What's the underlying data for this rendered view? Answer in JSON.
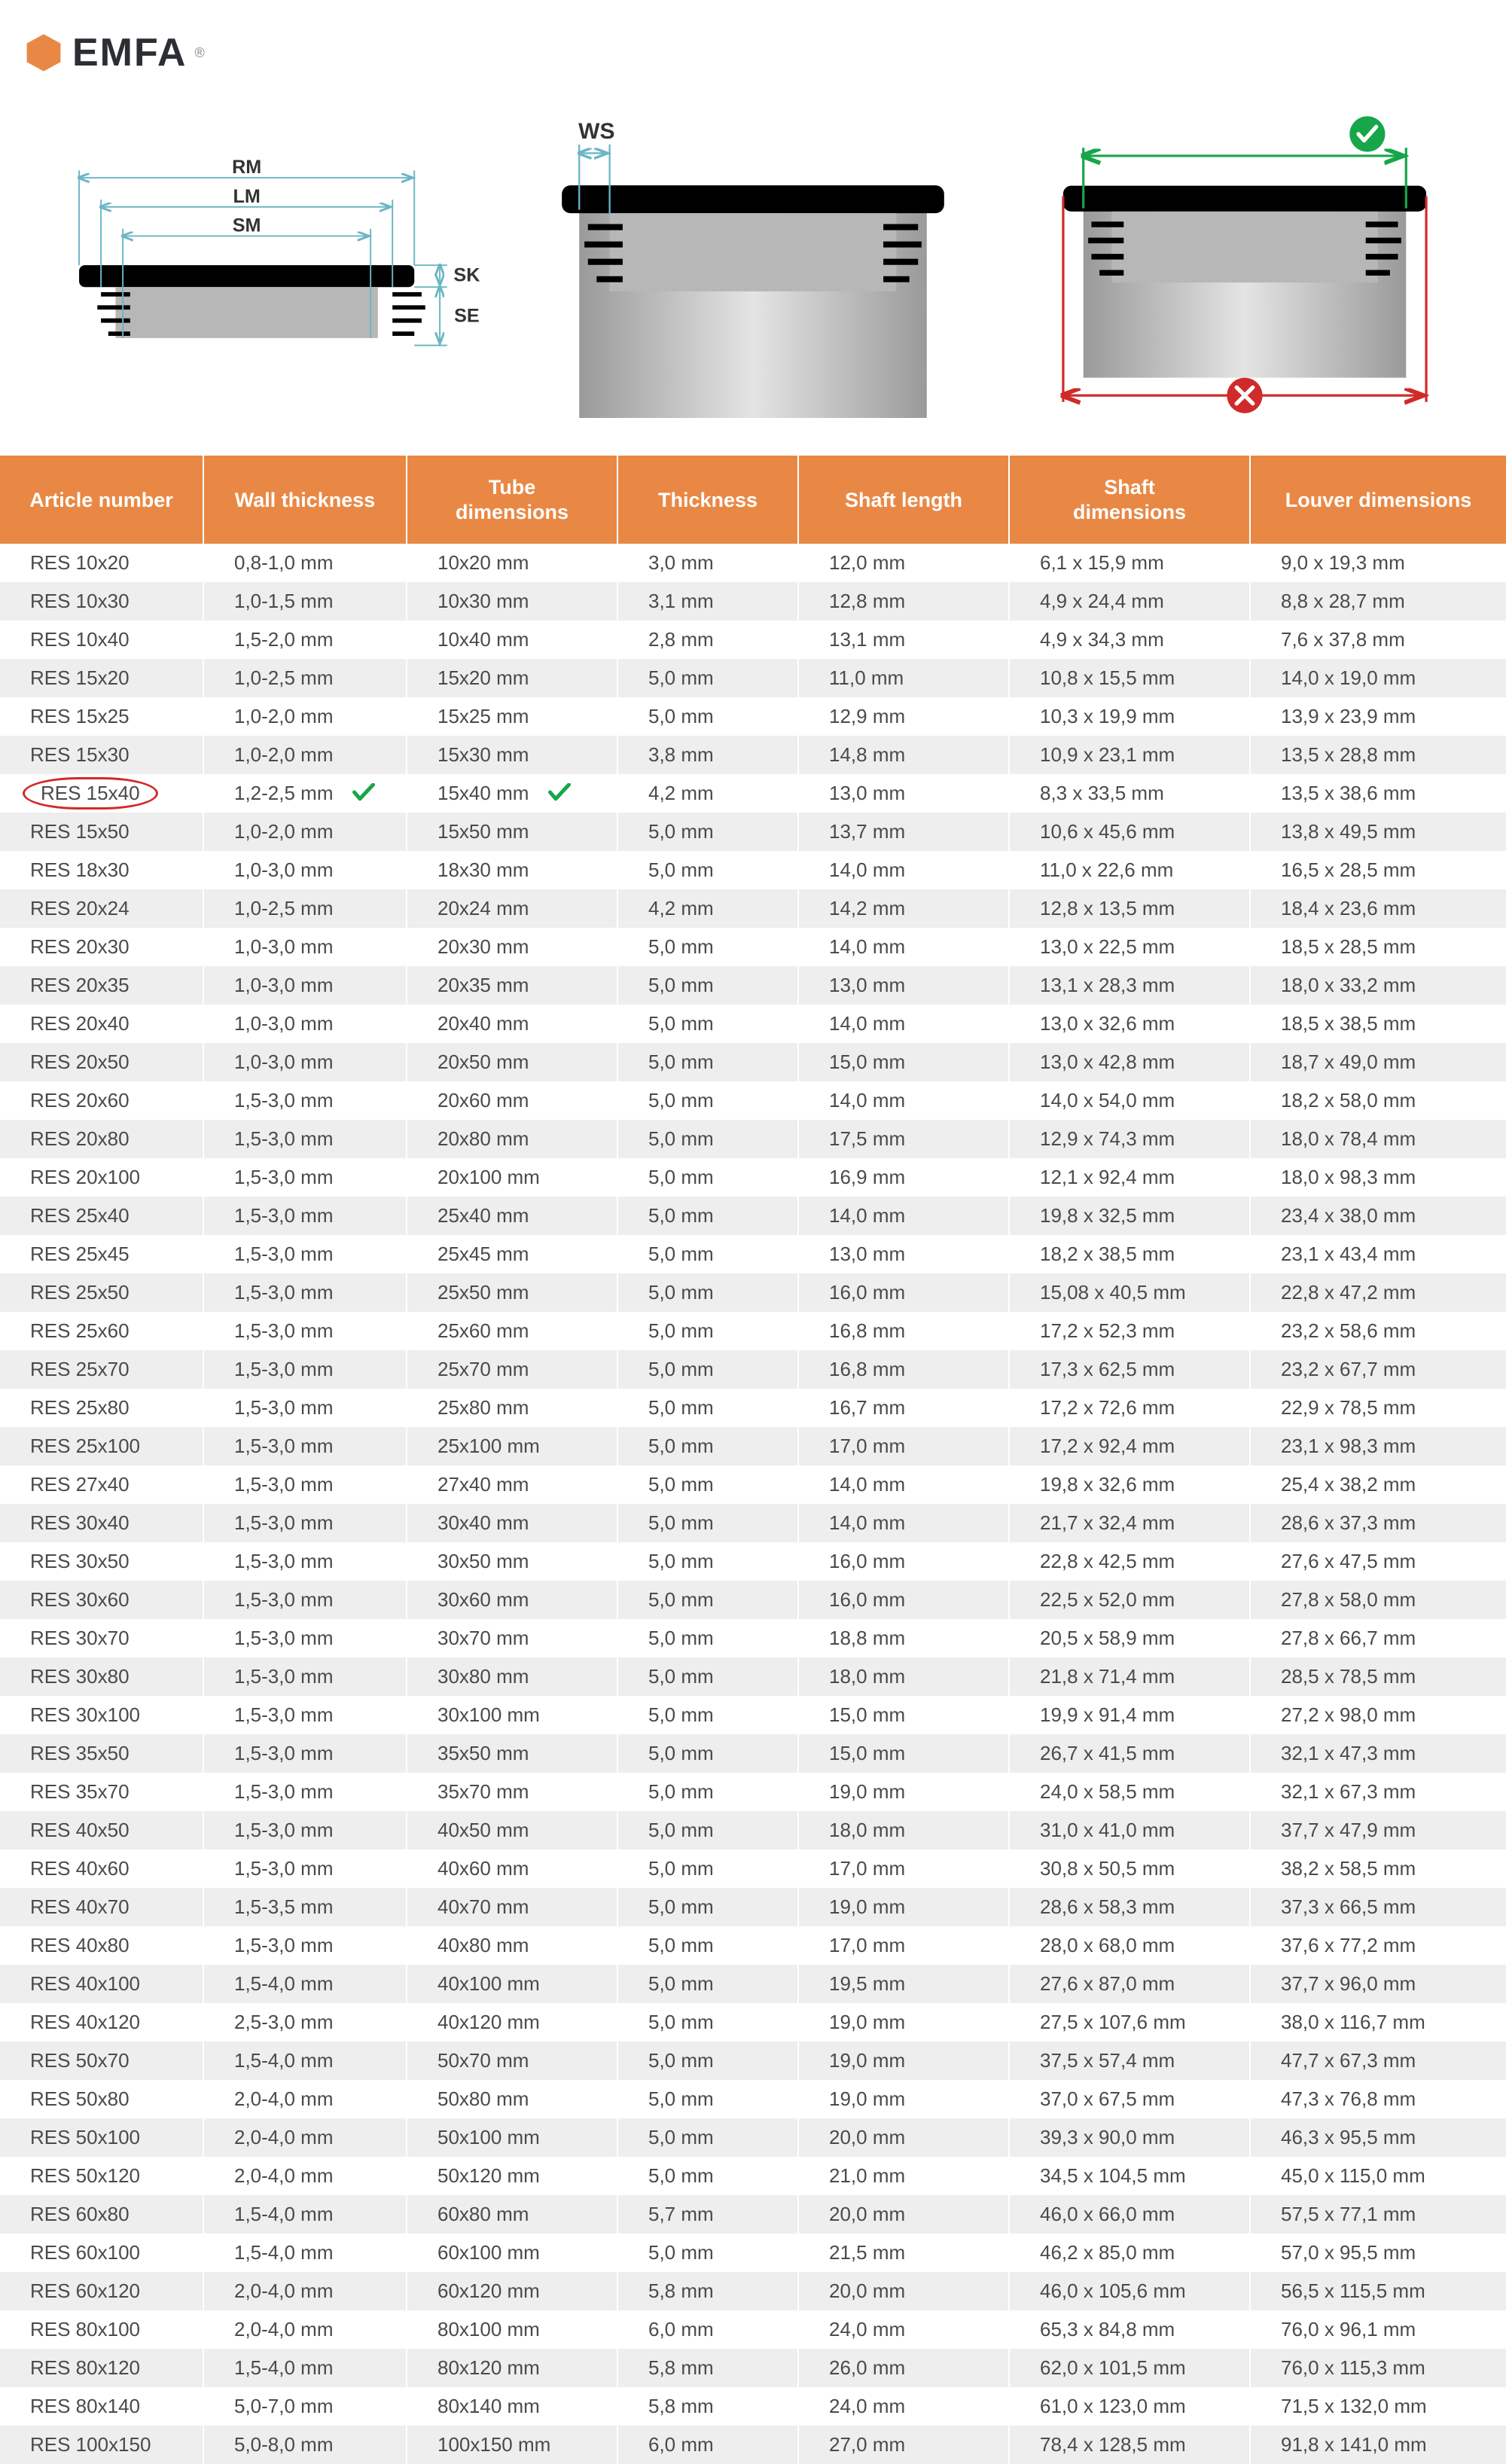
{
  "brand": {
    "name": "EMFA",
    "reg": "®",
    "icon_color": "#e98845",
    "text_color": "#2b2f33"
  },
  "diagrams": {
    "labels": {
      "rm": "RM",
      "lm": "LM",
      "sm": "SM",
      "sk": "SK",
      "se": "SE",
      "ws": "WS"
    },
    "colors": {
      "dim_line": "#6ab6c4",
      "plug_black": "#000000",
      "tube_grey": "#b7b7b7",
      "tube_light": "#dedede",
      "ok_green": "#17a64a",
      "bad_red": "#d12a2a"
    }
  },
  "table": {
    "headers": {
      "article": "Article number",
      "wall": "Wall thickness",
      "tube": "Tube\ndimensions",
      "thick": "Thickness",
      "shaftlen": "Shaft length",
      "shaftdim": "Shaft\ndimensions",
      "louver": "Louver dimensions"
    },
    "header_bg": "#e98845",
    "row_alt_bg": "#eeeeee",
    "highlight_article": "RES 15x40",
    "check_color": "#17a64a",
    "circle_color": "#d12a2a",
    "rows": [
      {
        "a": "RES 10x20",
        "w": "0,8-1,0 mm",
        "t": "10x20 mm",
        "th": "3,0 mm",
        "sl": "12,0 mm",
        "sd": "6,1 x 15,9 mm",
        "lv": "9,0 x 19,3 mm"
      },
      {
        "a": "RES 10x30",
        "w": "1,0-1,5 mm",
        "t": "10x30 mm",
        "th": "3,1 mm",
        "sl": "12,8 mm",
        "sd": "4,9 x 24,4 mm",
        "lv": "8,8 x 28,7 mm"
      },
      {
        "a": "RES 10x40",
        "w": "1,5-2,0 mm",
        "t": "10x40 mm",
        "th": "2,8 mm",
        "sl": "13,1 mm",
        "sd": "4,9 x 34,3 mm",
        "lv": "7,6 x 37,8 mm"
      },
      {
        "a": "RES 15x20",
        "w": "1,0-2,5 mm",
        "t": "15x20 mm",
        "th": "5,0 mm",
        "sl": "11,0 mm",
        "sd": "10,8 x 15,5 mm",
        "lv": "14,0 x 19,0 mm"
      },
      {
        "a": "RES 15x25",
        "w": "1,0-2,0 mm",
        "t": "15x25 mm",
        "th": "5,0 mm",
        "sl": "12,9 mm",
        "sd": "10,3 x 19,9 mm",
        "lv": "13,9 x 23,9 mm"
      },
      {
        "a": "RES 15x30",
        "w": "1,0-2,0 mm",
        "t": "15x30 mm",
        "th": "3,8 mm",
        "sl": "14,8 mm",
        "sd": "10,9 x 23,1 mm",
        "lv": "13,5 x 28,8 mm"
      },
      {
        "a": "RES 15x40",
        "w": "1,2-2,5 mm",
        "t": "15x40 mm",
        "th": "4,2 mm",
        "sl": "13,0 mm",
        "sd": "8,3 x 33,5 mm",
        "lv": "13,5 x 38,6 mm"
      },
      {
        "a": "RES 15x50",
        "w": "1,0-2,0 mm",
        "t": "15x50 mm",
        "th": "5,0 mm",
        "sl": "13,7 mm",
        "sd": "10,6 x 45,6 mm",
        "lv": "13,8 x 49,5 mm"
      },
      {
        "a": "RES 18x30",
        "w": "1,0-3,0 mm",
        "t": "18x30 mm",
        "th": "5,0 mm",
        "sl": "14,0 mm",
        "sd": "11,0 x 22,6 mm",
        "lv": "16,5 x 28,5 mm"
      },
      {
        "a": "RES 20x24",
        "w": "1,0-2,5 mm",
        "t": "20x24 mm",
        "th": "4,2 mm",
        "sl": "14,2 mm",
        "sd": "12,8 x 13,5 mm",
        "lv": "18,4 x 23,6 mm"
      },
      {
        "a": "RES 20x30",
        "w": "1,0-3,0 mm",
        "t": "20x30 mm",
        "th": "5,0 mm",
        "sl": "14,0 mm",
        "sd": "13,0 x 22,5 mm",
        "lv": "18,5 x 28,5 mm"
      },
      {
        "a": "RES 20x35",
        "w": "1,0-3,0 mm",
        "t": "20x35 mm",
        "th": "5,0 mm",
        "sl": "13,0 mm",
        "sd": "13,1 x 28,3 mm",
        "lv": "18,0 x 33,2 mm"
      },
      {
        "a": "RES 20x40",
        "w": "1,0-3,0 mm",
        "t": "20x40 mm",
        "th": "5,0 mm",
        "sl": "14,0 mm",
        "sd": "13,0 x 32,6 mm",
        "lv": "18,5 x 38,5 mm"
      },
      {
        "a": "RES 20x50",
        "w": "1,0-3,0 mm",
        "t": "20x50 mm",
        "th": "5,0 mm",
        "sl": "15,0 mm",
        "sd": "13,0 x 42,8 mm",
        "lv": "18,7 x 49,0 mm"
      },
      {
        "a": "RES 20x60",
        "w": "1,5-3,0 mm",
        "t": "20x60 mm",
        "th": "5,0 mm",
        "sl": "14,0 mm",
        "sd": "14,0 x 54,0 mm",
        "lv": "18,2 x 58,0 mm"
      },
      {
        "a": "RES 20x80",
        "w": "1,5-3,0 mm",
        "t": "20x80 mm",
        "th": "5,0 mm",
        "sl": "17,5 mm",
        "sd": "12,9 x 74,3 mm",
        "lv": "18,0 x 78,4 mm"
      },
      {
        "a": "RES 20x100",
        "w": "1,5-3,0 mm",
        "t": "20x100 mm",
        "th": "5,0 mm",
        "sl": "16,9 mm",
        "sd": "12,1 x 92,4 mm",
        "lv": "18,0 x 98,3 mm"
      },
      {
        "a": "RES 25x40",
        "w": "1,5-3,0 mm",
        "t": "25x40 mm",
        "th": "5,0 mm",
        "sl": "14,0 mm",
        "sd": "19,8 x 32,5 mm",
        "lv": "23,4 x 38,0 mm"
      },
      {
        "a": "RES 25x45",
        "w": "1,5-3,0 mm",
        "t": "25x45 mm",
        "th": "5,0 mm",
        "sl": "13,0 mm",
        "sd": "18,2 x 38,5 mm",
        "lv": "23,1 x 43,4 mm"
      },
      {
        "a": "RES 25x50",
        "w": "1,5-3,0 mm",
        "t": "25x50 mm",
        "th": "5,0 mm",
        "sl": "16,0 mm",
        "sd": "15,08 x 40,5 mm",
        "lv": "22,8 x 47,2 mm"
      },
      {
        "a": "RES 25x60",
        "w": "1,5-3,0 mm",
        "t": "25x60 mm",
        "th": "5,0 mm",
        "sl": "16,8 mm",
        "sd": "17,2 x 52,3 mm",
        "lv": "23,2 x 58,6 mm"
      },
      {
        "a": "RES 25x70",
        "w": "1,5-3,0 mm",
        "t": "25x70 mm",
        "th": "5,0 mm",
        "sl": "16,8 mm",
        "sd": "17,3 x 62,5 mm",
        "lv": "23,2 x 67,7 mm"
      },
      {
        "a": "RES 25x80",
        "w": "1,5-3,0 mm",
        "t": "25x80 mm",
        "th": "5,0 mm",
        "sl": "16,7 mm",
        "sd": "17,2 x 72,6 mm",
        "lv": "22,9 x 78,5 mm"
      },
      {
        "a": "RES 25x100",
        "w": "1,5-3,0 mm",
        "t": "25x100 mm",
        "th": "5,0 mm",
        "sl": "17,0 mm",
        "sd": "17,2 x 92,4 mm",
        "lv": "23,1 x 98,3 mm"
      },
      {
        "a": "RES 27x40",
        "w": "1,5-3,0 mm",
        "t": "27x40 mm",
        "th": "5,0 mm",
        "sl": "14,0 mm",
        "sd": "19,8 x 32,6 mm",
        "lv": "25,4 x 38,2 mm"
      },
      {
        "a": "RES 30x40",
        "w": "1,5-3,0 mm",
        "t": "30x40 mm",
        "th": "5,0 mm",
        "sl": "14,0 mm",
        "sd": "21,7 x 32,4 mm",
        "lv": "28,6 x 37,3 mm"
      },
      {
        "a": "RES 30x50",
        "w": "1,5-3,0 mm",
        "t": "30x50 mm",
        "th": "5,0 mm",
        "sl": "16,0 mm",
        "sd": "22,8 x 42,5 mm",
        "lv": "27,6 x 47,5 mm"
      },
      {
        "a": "RES 30x60",
        "w": "1,5-3,0 mm",
        "t": "30x60 mm",
        "th": "5,0 mm",
        "sl": "16,0 mm",
        "sd": "22,5 x 52,0 mm",
        "lv": "27,8 x 58,0 mm"
      },
      {
        "a": "RES 30x70",
        "w": "1,5-3,0 mm",
        "t": "30x70 mm",
        "th": "5,0 mm",
        "sl": "18,8 mm",
        "sd": "20,5 x 58,9 mm",
        "lv": "27,8 x 66,7 mm"
      },
      {
        "a": "RES 30x80",
        "w": "1,5-3,0 mm",
        "t": "30x80 mm",
        "th": "5,0 mm",
        "sl": "18,0 mm",
        "sd": "21,8 x 71,4 mm",
        "lv": "28,5 x 78,5 mm"
      },
      {
        "a": "RES 30x100",
        "w": "1,5-3,0 mm",
        "t": "30x100 mm",
        "th": "5,0 mm",
        "sl": "15,0 mm",
        "sd": "19,9 x 91,4 mm",
        "lv": "27,2 x 98,0 mm"
      },
      {
        "a": "RES 35x50",
        "w": "1,5-3,0 mm",
        "t": "35x50 mm",
        "th": "5,0 mm",
        "sl": "15,0 mm",
        "sd": "26,7 x 41,5 mm",
        "lv": "32,1 x 47,3 mm"
      },
      {
        "a": "RES 35x70",
        "w": "1,5-3,0 mm",
        "t": "35x70 mm",
        "th": "5,0 mm",
        "sl": "19,0 mm",
        "sd": "24,0 x 58,5 mm",
        "lv": "32,1 x 67,3 mm"
      },
      {
        "a": "RES 40x50",
        "w": "1,5-3,0 mm",
        "t": "40x50 mm",
        "th": "5,0 mm",
        "sl": "18,0 mm",
        "sd": "31,0 x 41,0 mm",
        "lv": "37,7 x 47,9 mm"
      },
      {
        "a": "RES 40x60",
        "w": "1,5-3,0 mm",
        "t": "40x60 mm",
        "th": "5,0 mm",
        "sl": "17,0 mm",
        "sd": "30,8 x 50,5 mm",
        "lv": "38,2 x 58,5 mm"
      },
      {
        "a": "RES 40x70",
        "w": "1,5-3,5 mm",
        "t": "40x70 mm",
        "th": "5,0 mm",
        "sl": "19,0 mm",
        "sd": "28,6 x 58,3 mm",
        "lv": "37,3 x 66,5 mm"
      },
      {
        "a": "RES 40x80",
        "w": "1,5-3,0 mm",
        "t": "40x80 mm",
        "th": "5,0 mm",
        "sl": "17,0 mm",
        "sd": "28,0 x 68,0 mm",
        "lv": "37,6 x 77,2 mm"
      },
      {
        "a": "RES 40x100",
        "w": "1,5-4,0 mm",
        "t": "40x100 mm",
        "th": "5,0 mm",
        "sl": "19,5 mm",
        "sd": "27,6 x 87,0 mm",
        "lv": "37,7 x 96,0 mm"
      },
      {
        "a": "RES 40x120",
        "w": "2,5-3,0 mm",
        "t": "40x120 mm",
        "th": "5,0 mm",
        "sl": "19,0 mm",
        "sd": "27,5 x 107,6 mm",
        "lv": "38,0 x 116,7 mm"
      },
      {
        "a": "RES 50x70",
        "w": "1,5-4,0 mm",
        "t": "50x70 mm",
        "th": "5,0 mm",
        "sl": "19,0 mm",
        "sd": "37,5 x 57,4 mm",
        "lv": "47,7 x 67,3 mm"
      },
      {
        "a": "RES 50x80",
        "w": "2,0-4,0 mm",
        "t": "50x80 mm",
        "th": "5,0 mm",
        "sl": "19,0 mm",
        "sd": "37,0 x 67,5 mm",
        "lv": "47,3 x 76,8 mm"
      },
      {
        "a": "RES 50x100",
        "w": "2,0-4,0 mm",
        "t": "50x100 mm",
        "th": "5,0 mm",
        "sl": "20,0 mm",
        "sd": "39,3 x 90,0 mm",
        "lv": "46,3 x 95,5 mm"
      },
      {
        "a": "RES 50x120",
        "w": "2,0-4,0 mm",
        "t": "50x120 mm",
        "th": "5,0 mm",
        "sl": "21,0 mm",
        "sd": "34,5 x 104,5 mm",
        "lv": "45,0 x 115,0 mm"
      },
      {
        "a": "RES 60x80",
        "w": "1,5-4,0 mm",
        "t": "60x80 mm",
        "th": "5,7 mm",
        "sl": "20,0 mm",
        "sd": "46,0 x 66,0 mm",
        "lv": "57,5 x 77,1 mm"
      },
      {
        "a": "RES 60x100",
        "w": "1,5-4,0 mm",
        "t": "60x100 mm",
        "th": "5,0 mm",
        "sl": "21,5 mm",
        "sd": "46,2 x 85,0 mm",
        "lv": "57,0 x 95,5 mm"
      },
      {
        "a": "RES 60x120",
        "w": "2,0-4,0 mm",
        "t": "60x120 mm",
        "th": "5,8 mm",
        "sl": "20,0 mm",
        "sd": "46,0 x 105,6 mm",
        "lv": "56,5 x 115,5 mm"
      },
      {
        "a": "RES 80x100",
        "w": "2,0-4,0 mm",
        "t": "80x100 mm",
        "th": "6,0 mm",
        "sl": "24,0 mm",
        "sd": "65,3 x 84,8 mm",
        "lv": "76,0 x 96,1 mm"
      },
      {
        "a": "RES 80x120",
        "w": "1,5-4,0 mm",
        "t": "80x120 mm",
        "th": "5,8 mm",
        "sl": "26,0 mm",
        "sd": "62,0 x 101,5 mm",
        "lv": "76,0 x 115,3 mm"
      },
      {
        "a": "RES 80x140",
        "w": "5,0-7,0 mm",
        "t": "80x140 mm",
        "th": "5,8 mm",
        "sl": "24,0 mm",
        "sd": "61,0 x 123,0 mm",
        "lv": "71,5 x 132,0 mm"
      },
      {
        "a": "RES 100x150",
        "w": "5,0-8,0 mm",
        "t": "100x150 mm",
        "th": "6,0 mm",
        "sl": "27,0 mm",
        "sd": "78,4 x 128,5 mm",
        "lv": "91,8 x 141,0 mm"
      }
    ]
  }
}
